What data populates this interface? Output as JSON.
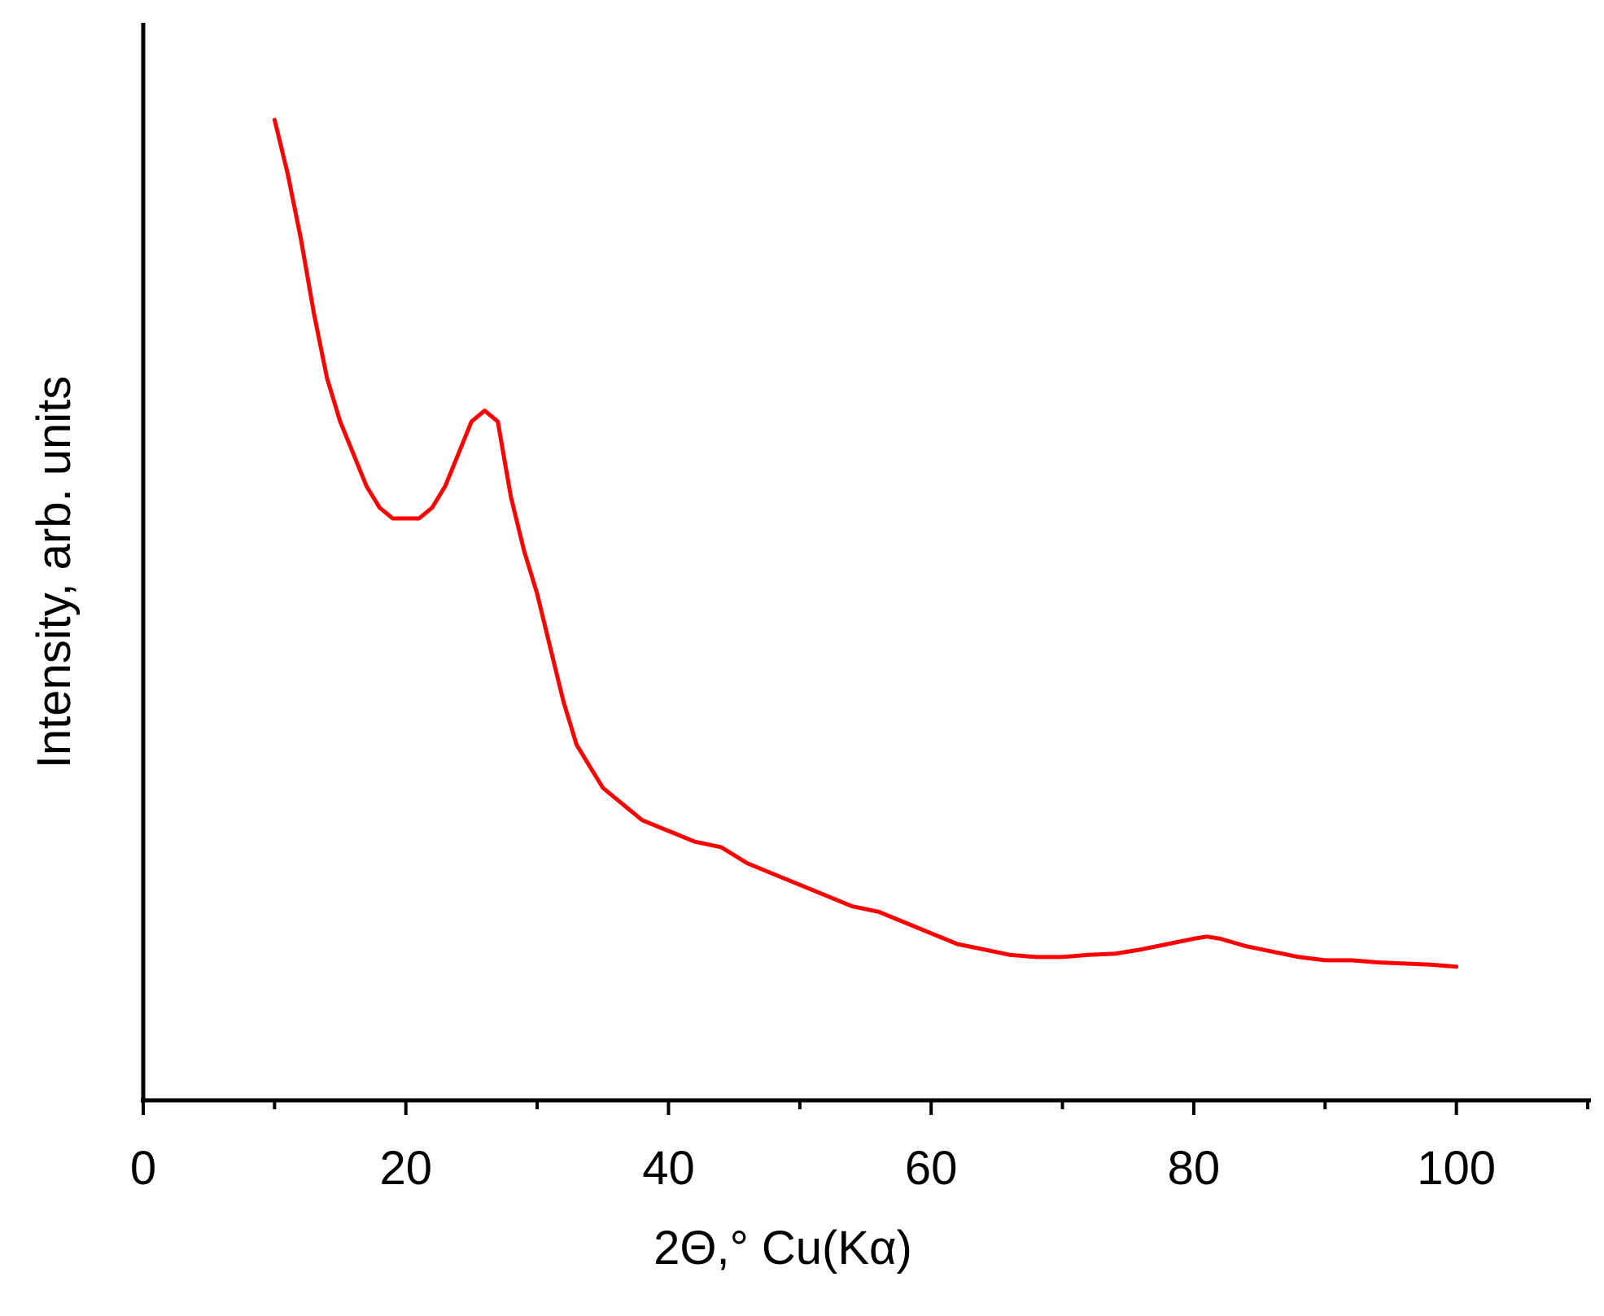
{
  "chart_data": {
    "type": "line",
    "title": "",
    "xlabel": "2Θ,° Cu(Kα)",
    "ylabel": "Intensity, arb. units",
    "xlim": [
      0,
      110
    ],
    "ylim": [
      0,
      100
    ],
    "y_ticks_shown": false,
    "grid": false,
    "x_major_ticks": [
      0,
      20,
      40,
      60,
      80,
      100
    ],
    "x_minor_ticks": [
      10,
      30,
      50,
      70,
      90,
      110
    ],
    "x_tick_labels": [
      "0",
      "20",
      "40",
      "60",
      "80",
      "100"
    ],
    "line_color": "#ff0000",
    "series": [
      {
        "x": [
          10,
          11,
          12,
          13,
          14,
          15,
          16,
          17,
          18,
          19,
          20,
          21,
          22,
          23,
          24,
          25,
          26,
          27,
          28,
          29,
          30,
          31,
          32,
          33,
          34,
          35,
          36,
          38,
          40,
          42,
          44,
          46,
          48,
          50,
          52,
          54,
          56,
          58,
          60,
          62,
          64,
          66,
          68,
          70,
          72,
          74,
          76,
          78,
          80,
          81,
          82,
          84,
          86,
          88,
          90,
          92,
          94,
          96,
          98,
          100
        ],
        "values": [
          91,
          86,
          80,
          73,
          67,
          63,
          60,
          57,
          55,
          54,
          54,
          54,
          55,
          57,
          60,
          63,
          64,
          63,
          56,
          51,
          47,
          42,
          37,
          33,
          31,
          29,
          28,
          26,
          25,
          24,
          23.5,
          22,
          21,
          20,
          19,
          18,
          17.5,
          16.5,
          15.5,
          14.5,
          14,
          13.5,
          13.3,
          13.3,
          13.5,
          13.6,
          14,
          14.5,
          15,
          15.2,
          15,
          14.3,
          13.8,
          13.3,
          13,
          13,
          12.8,
          12.7,
          12.6,
          12.4
        ]
      }
    ]
  }
}
